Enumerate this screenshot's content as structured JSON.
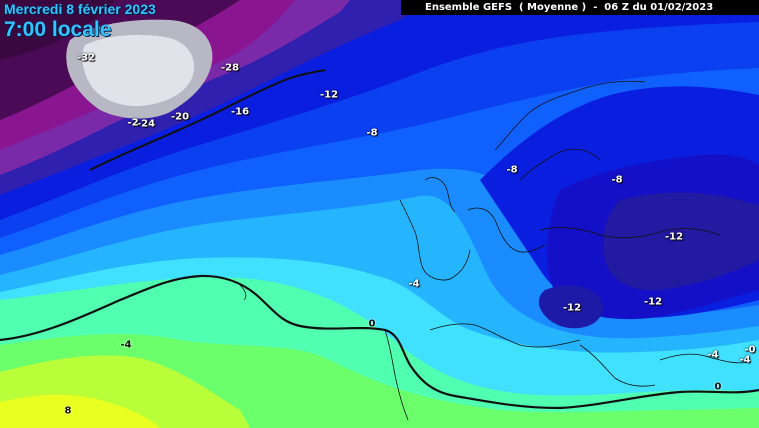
{
  "title": {
    "date": "Mercredi 8 février 2023",
    "time": "7:00 locale"
  },
  "header": "Ensemble GEFS  ( Moyenne )  -  06 Z du 01/02/2023",
  "colors": {
    "deep_purple": "#4a0a55",
    "magenta": "#8a1590",
    "violet": "#7a2aa8",
    "indigo": "#3020b0",
    "royal_blue": "#0a1ee0",
    "blue": "#0a40f0",
    "mid_blue": "#1060ff",
    "light_blue": "#1a8cff",
    "cyan_blue": "#25b5ff",
    "cyan": "#40e0ff",
    "aqua": "#40ffe0",
    "mint": "#50ffb0",
    "green": "#6cff6c",
    "yellow_green": "#b8ff3a",
    "yellow": "#e8ff20",
    "ice": "#d0d0d8",
    "freezing_line": "#111111"
  },
  "labels": [
    {
      "text": "-32"
    },
    {
      "text": "-28"
    },
    {
      "text": "-24"
    },
    {
      "text": "-2"
    },
    {
      "text": "-20"
    },
    {
      "text": "-16"
    },
    {
      "text": "-12"
    },
    {
      "text": "-8"
    },
    {
      "text": "-8"
    },
    {
      "text": "-8"
    },
    {
      "text": "-12"
    },
    {
      "text": "-12"
    },
    {
      "text": "-12"
    },
    {
      "text": "-4"
    },
    {
      "text": "0"
    },
    {
      "text": "-4"
    },
    {
      "text": "-4"
    },
    {
      "text": "-0"
    },
    {
      "text": "-4"
    },
    {
      "text": "0"
    },
    {
      "text": "8"
    }
  ]
}
